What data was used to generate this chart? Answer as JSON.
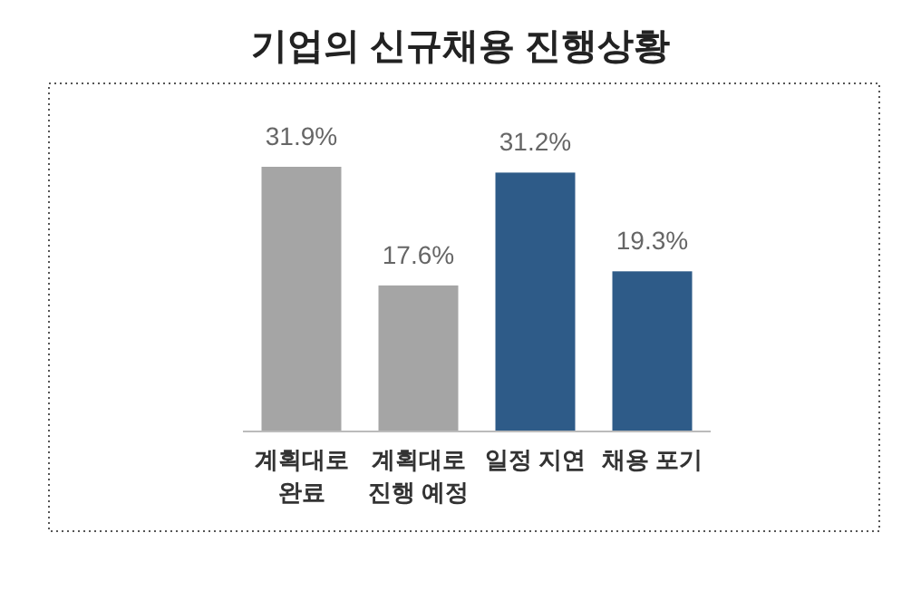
{
  "chart_data": {
    "type": "bar",
    "title": "기업의 신규채용 진행상황",
    "categories": [
      "계획대로\n완료",
      "계획대로\n진행 예정",
      "일정 지연",
      "채용 포기"
    ],
    "values": [
      31.9,
      17.6,
      31.2,
      19.3
    ],
    "colors": [
      "#a5a5a5",
      "#a5a5a5",
      "#2e5b88",
      "#2e5b88"
    ],
    "value_labels": [
      "31.9%",
      "17.6%",
      "31.2%",
      "19.3%"
    ]
  }
}
